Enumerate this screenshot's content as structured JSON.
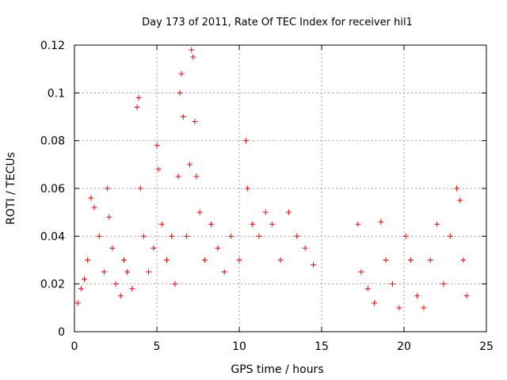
{
  "chart_data": {
    "type": "scatter",
    "title": "Day 173 of 2011, Rate Of TEC Index for receiver hil1",
    "xlabel": "GPS time / hours",
    "ylabel": "ROTI / TECUs",
    "xlim": [
      0,
      25
    ],
    "ylim": [
      0,
      0.12
    ],
    "xticks": [
      0,
      5,
      10,
      15,
      20,
      25
    ],
    "xtick_labels": [
      "0",
      "5",
      "10",
      "15",
      "20",
      "25"
    ],
    "yticks": [
      0,
      0.02,
      0.04,
      0.06,
      0.08,
      0.1,
      0.12
    ],
    "ytick_labels": [
      "0",
      "0.02",
      "0.04",
      "0.06",
      "0.08",
      "0.1",
      "0.12"
    ],
    "grid": true,
    "marker": "plus",
    "color": "#ff0000",
    "series": [
      {
        "name": "ROTI",
        "points": [
          [
            0.2,
            0.012
          ],
          [
            0.4,
            0.018
          ],
          [
            0.6,
            0.022
          ],
          [
            0.8,
            0.03
          ],
          [
            1.0,
            0.056
          ],
          [
            1.2,
            0.052
          ],
          [
            1.5,
            0.04
          ],
          [
            1.8,
            0.025
          ],
          [
            2.0,
            0.06
          ],
          [
            2.1,
            0.048
          ],
          [
            2.3,
            0.035
          ],
          [
            2.5,
            0.02
          ],
          [
            2.8,
            0.015
          ],
          [
            3.0,
            0.03
          ],
          [
            3.2,
            0.025
          ],
          [
            3.5,
            0.018
          ],
          [
            3.8,
            0.094
          ],
          [
            3.9,
            0.098
          ],
          [
            4.0,
            0.06
          ],
          [
            4.2,
            0.04
          ],
          [
            4.5,
            0.025
          ],
          [
            4.8,
            0.035
          ],
          [
            5.0,
            0.078
          ],
          [
            5.1,
            0.068
          ],
          [
            5.3,
            0.045
          ],
          [
            5.6,
            0.03
          ],
          [
            5.9,
            0.04
          ],
          [
            6.1,
            0.02
          ],
          [
            6.3,
            0.065
          ],
          [
            6.4,
            0.1
          ],
          [
            6.5,
            0.108
          ],
          [
            6.6,
            0.09
          ],
          [
            6.8,
            0.04
          ],
          [
            7.0,
            0.07
          ],
          [
            7.1,
            0.118
          ],
          [
            7.2,
            0.115
          ],
          [
            7.3,
            0.088
          ],
          [
            7.4,
            0.065
          ],
          [
            7.6,
            0.05
          ],
          [
            7.9,
            0.03
          ],
          [
            8.3,
            0.045
          ],
          [
            8.7,
            0.035
          ],
          [
            9.1,
            0.025
          ],
          [
            9.5,
            0.04
          ],
          [
            10.0,
            0.03
          ],
          [
            10.4,
            0.08
          ],
          [
            10.5,
            0.06
          ],
          [
            10.8,
            0.045
          ],
          [
            11.2,
            0.04
          ],
          [
            11.6,
            0.05
          ],
          [
            12.0,
            0.045
          ],
          [
            12.5,
            0.03
          ],
          [
            13.0,
            0.05
          ],
          [
            13.5,
            0.04
          ],
          [
            14.0,
            0.035
          ],
          [
            14.5,
            0.028
          ],
          [
            17.2,
            0.045
          ],
          [
            17.4,
            0.025
          ],
          [
            17.8,
            0.018
          ],
          [
            18.2,
            0.012
          ],
          [
            18.6,
            0.046
          ],
          [
            18.9,
            0.03
          ],
          [
            19.3,
            0.02
          ],
          [
            19.7,
            0.01
          ],
          [
            20.1,
            0.04
          ],
          [
            20.4,
            0.03
          ],
          [
            20.8,
            0.015
          ],
          [
            21.2,
            0.01
          ],
          [
            21.6,
            0.03
          ],
          [
            22.0,
            0.045
          ],
          [
            22.4,
            0.02
          ],
          [
            22.8,
            0.04
          ],
          [
            23.2,
            0.06
          ],
          [
            23.4,
            0.055
          ],
          [
            23.6,
            0.03
          ],
          [
            23.8,
            0.015
          ]
        ]
      }
    ]
  }
}
